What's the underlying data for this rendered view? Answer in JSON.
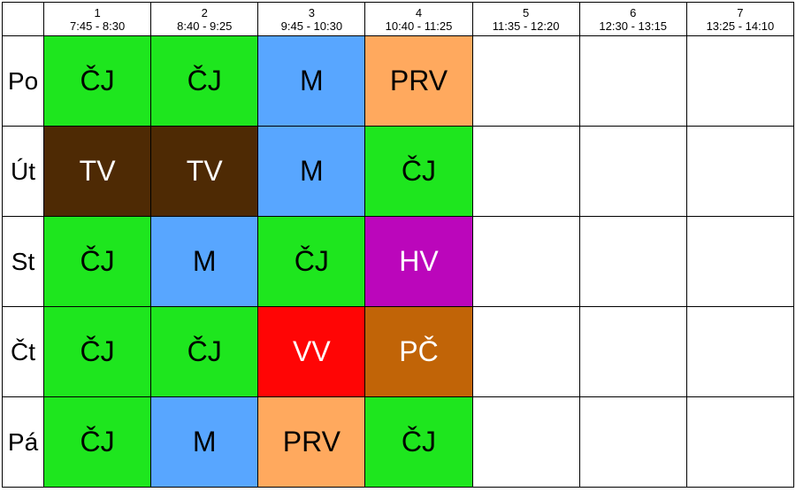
{
  "periods": [
    {
      "number": "1",
      "time": "7:45 - 8:30"
    },
    {
      "number": "2",
      "time": "8:40 - 9:25"
    },
    {
      "number": "3",
      "time": "9:45 - 10:30"
    },
    {
      "number": "4",
      "time": "10:40 - 11:25"
    },
    {
      "number": "5",
      "time": "11:35 - 12:20"
    },
    {
      "number": "6",
      "time": "12:30 - 13:15"
    },
    {
      "number": "7",
      "time": "13:25 - 14:10"
    }
  ],
  "subject_colors": {
    "ČJ": {
      "bg": "#1ee61e",
      "fg": "#000000"
    },
    "M": {
      "bg": "#58a6ff",
      "fg": "#000000"
    },
    "PRV": {
      "bg": "#ffa95e",
      "fg": "#000000"
    },
    "TV": {
      "bg": "#4e2a04",
      "fg": "#ffffff"
    },
    "HV": {
      "bg": "#bb06bb",
      "fg": "#ffffff"
    },
    "VV": {
      "bg": "#ff0505",
      "fg": "#ffffff"
    },
    "PČ": {
      "bg": "#c16407",
      "fg": "#ffffff"
    }
  },
  "days": [
    {
      "label": "Po",
      "lessons": [
        "ČJ",
        "ČJ",
        "M",
        "PRV",
        "",
        "",
        ""
      ]
    },
    {
      "label": "Út",
      "lessons": [
        "TV",
        "TV",
        "M",
        "ČJ",
        "",
        "",
        ""
      ]
    },
    {
      "label": "St",
      "lessons": [
        "ČJ",
        "M",
        "ČJ",
        "HV",
        "",
        "",
        ""
      ]
    },
    {
      "label": "Čt",
      "lessons": [
        "ČJ",
        "ČJ",
        "VV",
        "PČ",
        "",
        "",
        ""
      ]
    },
    {
      "label": "Pá",
      "lessons": [
        "ČJ",
        "M",
        "PRV",
        "ČJ",
        "",
        "",
        ""
      ]
    }
  ]
}
